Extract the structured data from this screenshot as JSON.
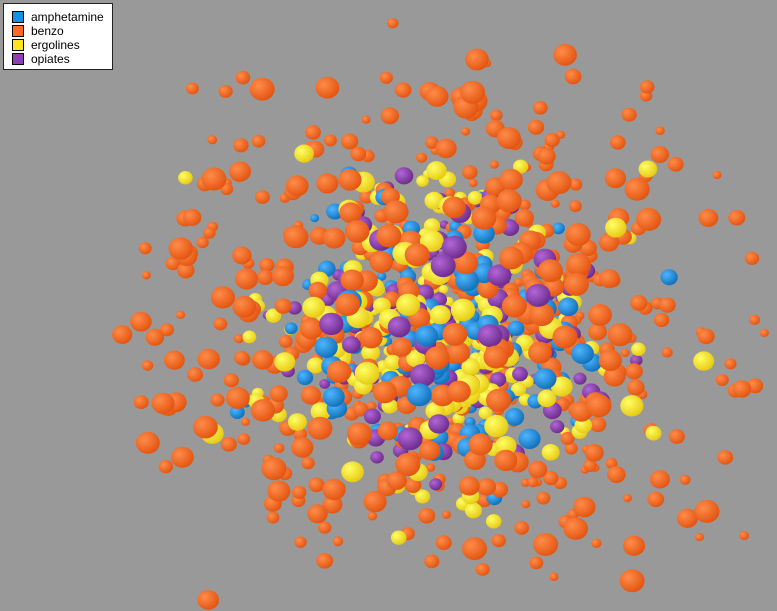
{
  "chart_data": {
    "type": "scatter",
    "dimensions": 3,
    "title": "",
    "xlabel": "",
    "ylabel": "",
    "zlabel": "",
    "legend": {
      "position": "top-left",
      "entries": [
        {
          "label": "amphetamine",
          "color": "#1a8fe0"
        },
        {
          "label": "benzo",
          "color": "#ff6a1f"
        },
        {
          "label": "ergolines",
          "color": "#ffe51f"
        },
        {
          "label": "opiates",
          "color": "#8e3fb0"
        }
      ]
    },
    "series": [
      {
        "name": "amphetamine",
        "color": "#1a8fe0",
        "count": 160
      },
      {
        "name": "benzo",
        "color": "#ff6a1f",
        "count": 560
      },
      {
        "name": "ergolines",
        "color": "#ffe51f",
        "count": 250
      },
      {
        "name": "opiates",
        "color": "#8e3fb0",
        "count": 130
      }
    ],
    "axes_visible": false,
    "grid": false,
    "background_color": "#999999"
  }
}
